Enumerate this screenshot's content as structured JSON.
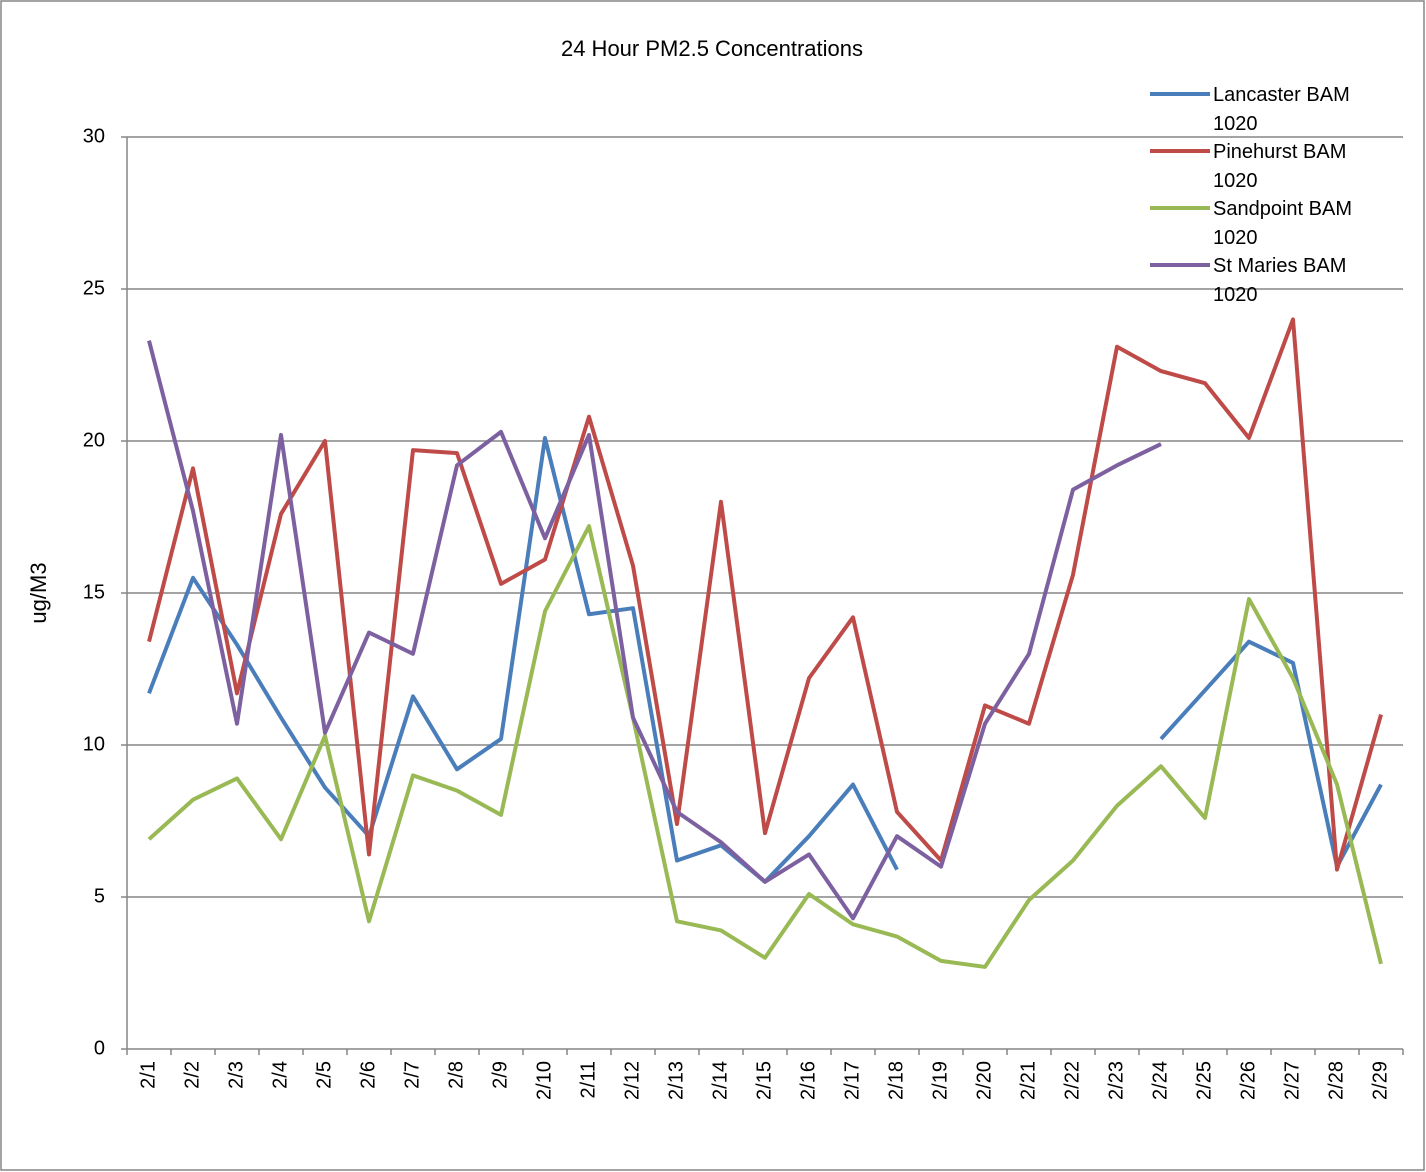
{
  "chart_data": {
    "type": "line",
    "title": "24 Hour PM2.5 Concentrations",
    "y_label": "ug/M3",
    "categories": [
      "2/1",
      "2/2",
      "2/3",
      "2/4",
      "2/5",
      "2/6",
      "2/7",
      "2/8",
      "2/9",
      "2/10",
      "2/11",
      "2/12",
      "2/13",
      "2/14",
      "2/15",
      "2/16",
      "2/17",
      "2/18",
      "2/19",
      "2/20",
      "2/21",
      "2/22",
      "2/23",
      "2/24",
      "2/25",
      "2/26",
      "2/27",
      "2/28",
      "2/29"
    ],
    "ylim": [
      0,
      30
    ],
    "yticks": [
      0,
      5,
      10,
      15,
      20,
      25,
      30
    ],
    "grid": true,
    "legend": "top-right",
    "series": [
      {
        "name": "Lancaster BAM 1020",
        "color": "#4a7ebb",
        "values": [
          11.7,
          15.5,
          13.3,
          10.9,
          8.6,
          7.0,
          11.6,
          9.2,
          10.2,
          20.1,
          14.3,
          14.5,
          6.2,
          6.7,
          5.5,
          7.0,
          8.7,
          5.9,
          null,
          null,
          null,
          null,
          null,
          10.2,
          11.8,
          13.4,
          12.7,
          6.0,
          8.7
        ]
      },
      {
        "name": "Pinehurst BAM 1020",
        "color": "#be4b48",
        "values": [
          13.4,
          19.1,
          11.7,
          17.6,
          20.0,
          6.4,
          19.7,
          19.6,
          15.3,
          16.1,
          20.8,
          15.9,
          7.4,
          18.0,
          7.1,
          12.2,
          14.2,
          7.8,
          6.2,
          11.3,
          10.7,
          15.6,
          23.1,
          22.3,
          21.9,
          20.1,
          24.0,
          5.9,
          11.0
        ]
      },
      {
        "name": "Sandpoint BAM 1020",
        "color": "#98b954",
        "values": [
          6.9,
          8.2,
          8.9,
          6.9,
          10.3,
          4.2,
          9.0,
          8.5,
          7.7,
          14.4,
          17.2,
          10.9,
          4.2,
          3.9,
          3.0,
          5.1,
          4.1,
          3.7,
          2.9,
          2.7,
          4.9,
          6.2,
          8.0,
          9.3,
          7.6,
          14.8,
          12.2,
          8.7,
          2.8
        ]
      },
      {
        "name": "St Maries BAM 1020",
        "color": "#7d60a0",
        "values": [
          23.3,
          17.7,
          10.7,
          20.2,
          10.4,
          13.7,
          13.0,
          19.2,
          20.3,
          16.8,
          20.2,
          10.9,
          7.8,
          6.8,
          5.5,
          6.4,
          4.3,
          7.0,
          6.0,
          10.7,
          13.0,
          18.4,
          19.2,
          19.9,
          null,
          null,
          null,
          null,
          null
        ]
      }
    ]
  }
}
